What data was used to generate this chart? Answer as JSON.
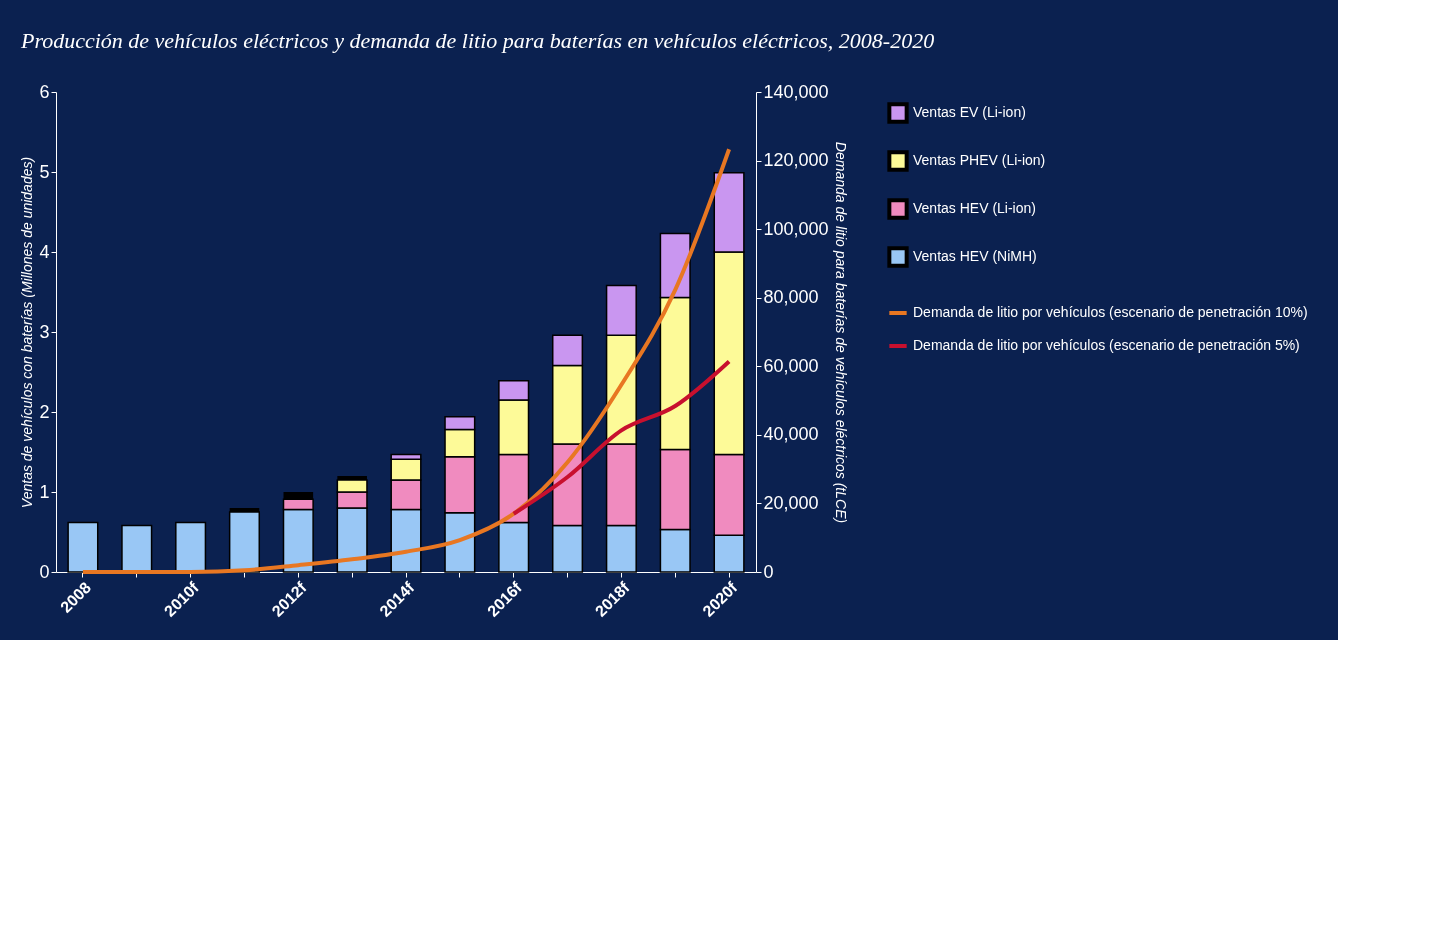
{
  "chart_data": {
    "type": "bar",
    "stacked": true,
    "title": "Producción de vehículos eléctricos y demanda de litio para baterías en vehículos eléctricos, 2008-2020",
    "ylabel": "Ventas de vehículos con baterías (Millones de unidades)",
    "y2label": "Demanda de litio para baterías de vehículos eléctricos (tLCE)",
    "categories": [
      "2008",
      null,
      "2010f",
      null,
      "2012f",
      null,
      "2014f",
      null,
      "2016f",
      null,
      "2018f",
      null,
      "2020f"
    ],
    "ylim": [
      0,
      6
    ],
    "yticks": [
      0,
      1,
      2,
      3,
      4,
      5,
      6
    ],
    "y2lim": [
      0,
      140000
    ],
    "y2ticks": [
      0,
      {
        "value": 20000,
        "label": "20,000"
      },
      {
        "value": 40000,
        "label": "40,000"
      },
      {
        "value": 60000,
        "label": "60,000"
      },
      {
        "value": 80000,
        "label": "80,000"
      },
      {
        "value": 100000,
        "label": "100,000"
      },
      {
        "value": 120000,
        "label": "120,000"
      },
      {
        "value": 140000,
        "label": "140,000"
      }
    ],
    "grid": false,
    "legend": "right",
    "series": [
      {
        "name": "Ventas HEV (NiMH)",
        "color": "#99c7f5",
        "values": [
          0.62,
          0.58,
          0.62,
          0.75,
          0.78,
          0.8,
          0.78,
          0.74,
          0.62,
          0.58,
          0.58,
          0.53,
          0.46
        ]
      },
      {
        "name": "Ventas HEV (Li-ion)",
        "color": "#f08bbf",
        "values": [
          null,
          null,
          null,
          null,
          0.13,
          0.2,
          0.37,
          0.7,
          0.85,
          1.02,
          1.02,
          1.0,
          1.01
        ]
      },
      {
        "name": "Ventas PHEV (Li-ion)",
        "color": "#fdfa98",
        "values": [
          null,
          null,
          null,
          null,
          null,
          0.15,
          0.26,
          0.34,
          0.68,
          0.98,
          1.36,
          1.9,
          2.53
        ]
      },
      {
        "name": "Ventas EV (Li-ion)",
        "color": "#c996f0",
        "values": [
          null,
          null,
          null,
          null,
          null,
          null,
          0.06,
          0.16,
          0.24,
          0.38,
          0.62,
          0.8,
          0.99
        ]
      },
      {
        "color": "#000000",
        "values": [
          null,
          null,
          null,
          0.05,
          0.09,
          0.05,
          null,
          null,
          null,
          null,
          null,
          null,
          null
        ]
      },
      {
        "name": "Demanda de litio por vehículos (escenario de penetración 10%)",
        "type": "line",
        "axis": "y2",
        "color": "#e87722",
        "values": [
          0,
          0,
          0,
          500,
          2000,
          3700,
          5900,
          9300,
          17000,
          32000,
          54600,
          82300,
          123300
        ]
      },
      {
        "name": "Demanda de litio por vehículos (escenario de penetración 5%)",
        "type": "line",
        "axis": "y2",
        "color": "#c8102e",
        "values": [
          null,
          null,
          null,
          null,
          null,
          null,
          null,
          null,
          17000,
          27700,
          41300,
          48400,
          61400
        ]
      }
    ]
  }
}
